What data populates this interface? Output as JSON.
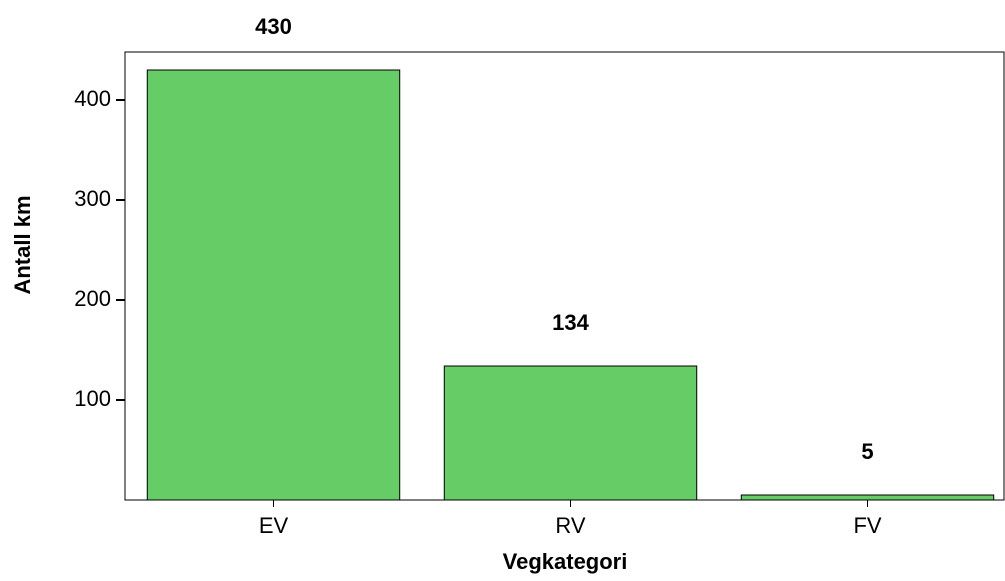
{
  "chart_data": {
    "type": "bar",
    "categories": [
      "EV",
      "RV",
      "FV"
    ],
    "values": [
      430,
      134,
      5
    ],
    "color": "#66cc66",
    "x_label": "Vegkategori",
    "y_label": "Antall km",
    "ylim": [
      0,
      448
    ],
    "yticks": [
      100,
      200,
      300,
      400
    ],
    "grid": false
  }
}
